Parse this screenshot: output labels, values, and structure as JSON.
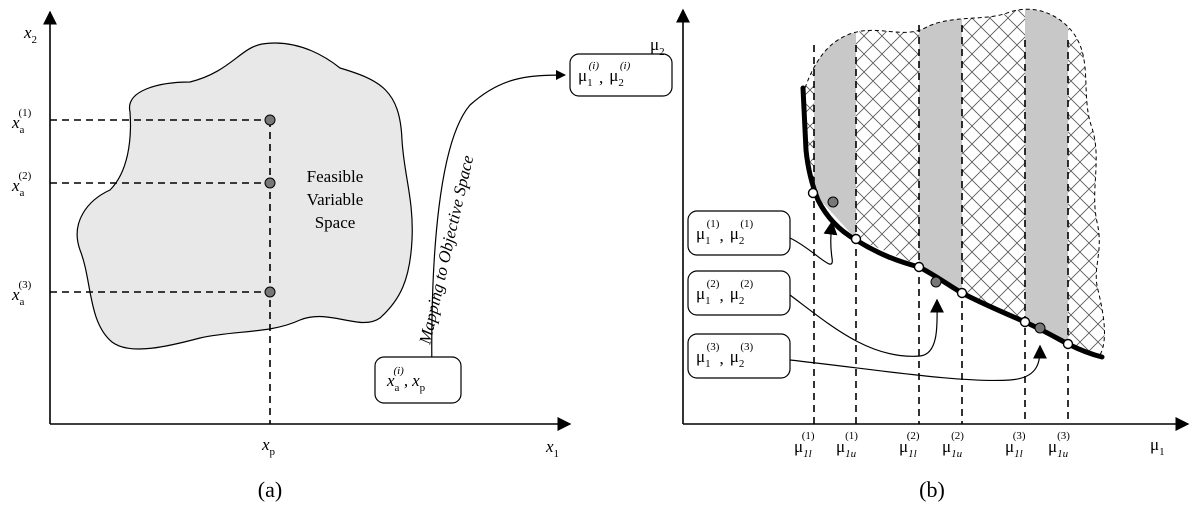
{
  "panel_a": {
    "caption": "(a)",
    "axis_y": "x",
    "axis_y_sub": "2",
    "axis_x": "x",
    "axis_x_sub": "1",
    "tick_x": "x",
    "tick_x_sub": "p",
    "ticks_y": [
      {
        "base": "x",
        "sub": "a",
        "sup": "(1)"
      },
      {
        "base": "x",
        "sub": "a",
        "sup": "(2)"
      },
      {
        "base": "x",
        "sub": "a",
        "sup": "(3)"
      }
    ],
    "region_label": [
      "Feasible",
      "Variable",
      "Space"
    ],
    "mapping_label": "Mapping to Objective Space",
    "input_box": {
      "base1": "x",
      "sub1": "a",
      "sup1": "(i)",
      "sep": ",",
      "base2": "x",
      "sub2": "p"
    },
    "output_box": {
      "base1": "μ",
      "sub1": "1",
      "sup1": "(i)",
      "sep": ",",
      "base2": "μ",
      "sub2": "2",
      "sup2": "(i)"
    }
  },
  "panel_b": {
    "caption": "(b)",
    "axis_y": "μ",
    "axis_y_sub": "2",
    "axis_x": "μ",
    "axis_x_sub": "1",
    "boxes": [
      {
        "b1": "μ",
        "s1": "1",
        "p1": "(1)",
        "sep": ",",
        "b2": "μ",
        "s2": "2",
        "p2": "(1)"
      },
      {
        "b1": "μ",
        "s1": "1",
        "p1": "(2)",
        "sep": ",",
        "b2": "μ",
        "s2": "2",
        "p2": "(2)"
      },
      {
        "b1": "μ",
        "s1": "1",
        "p1": "(3)",
        "sep": ",",
        "b2": "μ",
        "s2": "2",
        "p2": "(3)"
      }
    ],
    "ticks": [
      {
        "base": "μ",
        "sub": "1l",
        "sup": "(1)"
      },
      {
        "base": "μ",
        "sub": "1u",
        "sup": "(1)"
      },
      {
        "base": "μ",
        "sub": "1l",
        "sup": "(2)"
      },
      {
        "base": "μ",
        "sub": "1u",
        "sup": "(2)"
      },
      {
        "base": "μ",
        "sub": "1l",
        "sup": "(3)"
      },
      {
        "base": "μ",
        "sub": "1u",
        "sup": "(3)"
      }
    ]
  },
  "colors": {
    "region_fill": "#e8e8e8",
    "band_fill": "#c8c8c8",
    "point_fill": "#777777"
  }
}
